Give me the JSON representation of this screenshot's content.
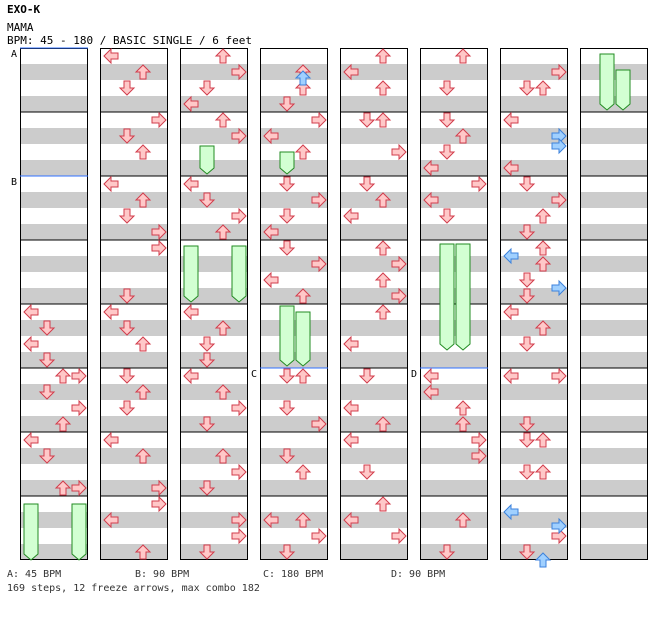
{
  "song": {
    "artist": "EXO-K",
    "title": "MAMA",
    "info": "BPM: 45 - 180 / BASIC SINGLE / 6 feet"
  },
  "sections": [
    "A",
    "B",
    "C",
    "D"
  ],
  "bpm_legend": [
    "A: 45 BPM",
    "B: 90 BPM",
    "C: 180 BPM",
    "D: 90 BPM"
  ],
  "summary": "169 steps, 12 freeze arrows, max combo 182",
  "colors": {
    "stripe": "#cccccc",
    "border": "#000000",
    "section_line": "#3070ff",
    "note_red_fill": "#ffc8c8",
    "note_red_stroke": "#d23c4b",
    "note_blue_fill": "#a0d0ff",
    "note_blue_stroke": "#3c82dc",
    "freeze_fill": "#d2ffd2",
    "freeze_stroke": "#228b22"
  }
}
